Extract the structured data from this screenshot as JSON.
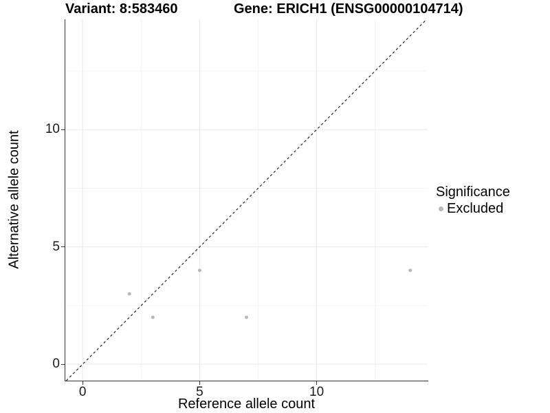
{
  "chart_data": {
    "type": "scatter",
    "titles": {
      "left": "Variant: 8:583460",
      "right": "Gene: ERICH1 (ENSG00000104714)"
    },
    "xlabel": "Reference allele count",
    "ylabel": "Alternative allele count",
    "xlim": [
      -0.74,
      14.74
    ],
    "ylim": [
      -0.7,
      14.7
    ],
    "x_major_ticks": [
      0,
      5,
      10
    ],
    "x_minor_gridlines": [
      2.5,
      7.5,
      12.5
    ],
    "y_major_ticks": [
      0,
      5,
      10
    ],
    "y_minor_gridlines": [
      2.5,
      7.5,
      12.5
    ],
    "grid": "on",
    "identity_line": {
      "style": "dashed",
      "from": -0.7,
      "to": 14.7
    },
    "series": [
      {
        "name": "Excluded",
        "color": "#b9b9b9",
        "points": [
          {
            "x": 2,
            "y": 3
          },
          {
            "x": 3,
            "y": 2
          },
          {
            "x": 5,
            "y": 4
          },
          {
            "x": 7,
            "y": 2
          },
          {
            "x": 14,
            "y": 4
          }
        ]
      }
    ],
    "legend": {
      "title": "Significance",
      "position": "right",
      "items": [
        {
          "label": "Excluded",
          "color": "#b9b9b9"
        }
      ]
    },
    "colors": {
      "grid_major": "#e9e9e9",
      "grid_minor": "#f3f3f3",
      "axis_line": "#333333",
      "identity_line": "#222222",
      "tick_text": "#1a1a1a"
    },
    "point_radius": 2.5
  }
}
